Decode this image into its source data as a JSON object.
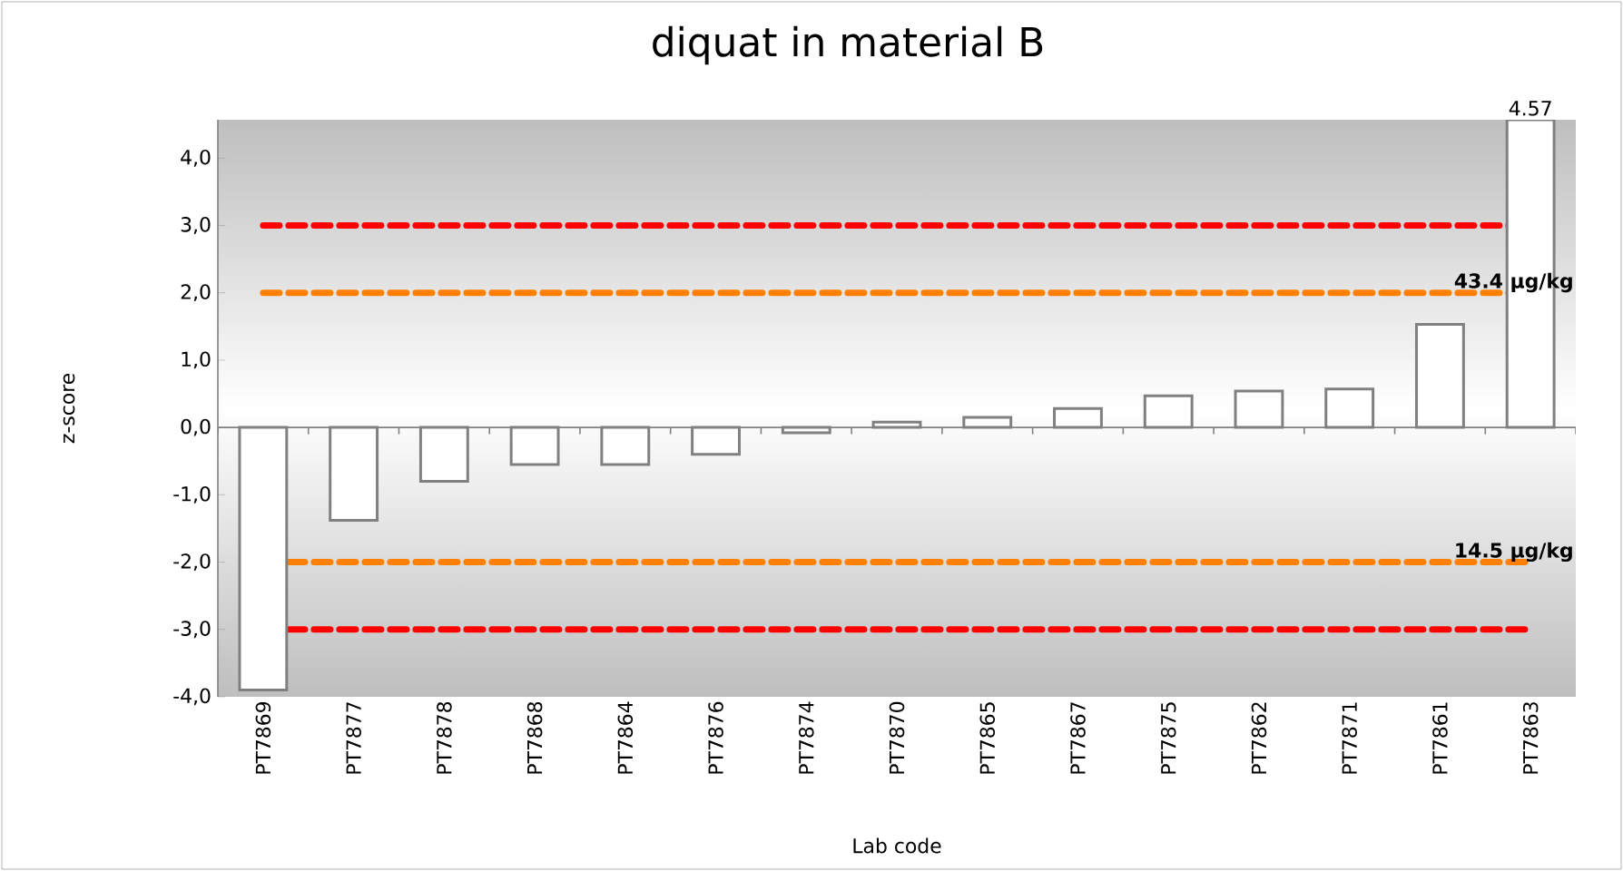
{
  "chart_data": {
    "type": "bar",
    "title": "diquat in material B",
    "xlabel": "Lab code",
    "ylabel": "z-score",
    "categories": [
      "PT7869",
      "PT7877",
      "PT7878",
      "PT7868",
      "PT7864",
      "PT7876",
      "PT7874",
      "PT7870",
      "PT7865",
      "PT7867",
      "PT7875",
      "PT7862",
      "PT7871",
      "PT7861",
      "PT7863"
    ],
    "values": [
      -3.9,
      -1.38,
      -0.8,
      -0.55,
      -0.55,
      -0.4,
      -0.08,
      0.08,
      0.15,
      0.28,
      0.47,
      0.54,
      0.57,
      1.53,
      4.57
    ],
    "value_labels": [
      null,
      null,
      null,
      null,
      null,
      null,
      null,
      null,
      null,
      null,
      null,
      null,
      null,
      null,
      "4.57"
    ],
    "color": "#ffffff",
    "ylim": [
      -4,
      4.57
    ],
    "yticks": [
      {
        "value": -4,
        "label": "-4,0"
      },
      {
        "value": -3,
        "label": "-3,0"
      },
      {
        "value": -2,
        "label": "-2,0"
      },
      {
        "value": -1,
        "label": "-1,0"
      },
      {
        "value": 0,
        "label": "0,0"
      },
      {
        "value": 1,
        "label": "1,0"
      },
      {
        "value": 2,
        "label": "2,0"
      },
      {
        "value": 3,
        "label": "3,0"
      },
      {
        "value": 4,
        "label": "4,0"
      }
    ],
    "ref_lines": [
      {
        "axis": "y",
        "value": 3,
        "color": "#ff0000",
        "line_style": "dashed"
      },
      {
        "axis": "y",
        "value": 2,
        "color": "#ff8000",
        "line_style": "dashed",
        "label": "43.4 µg/kg"
      },
      {
        "axis": "y",
        "value": -2,
        "color": "#ff8000",
        "line_style": "dashed",
        "label": "14.5 µg/kg"
      },
      {
        "axis": "y",
        "value": -3,
        "color": "#ff0000",
        "line_style": "dashed"
      }
    ],
    "grid": false
  }
}
